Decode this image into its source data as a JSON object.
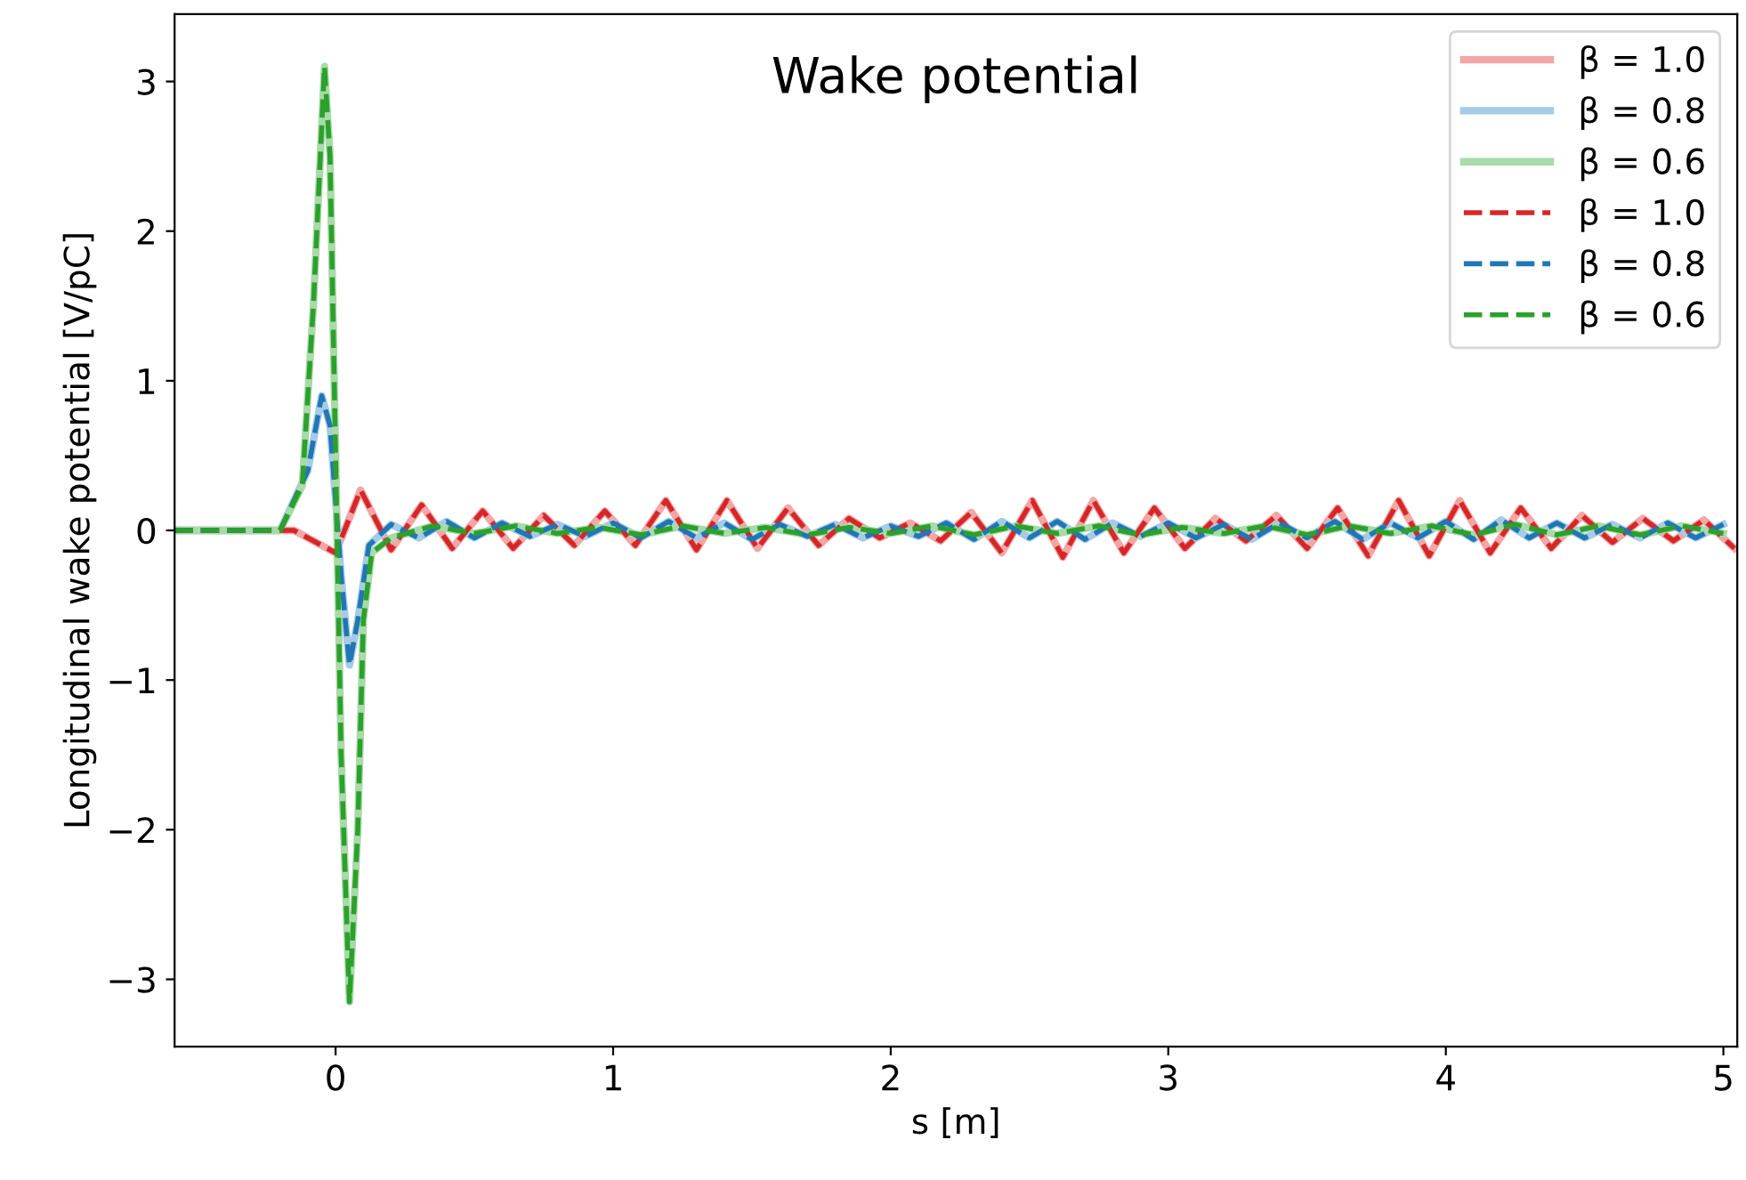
{
  "chart_data": {
    "type": "line",
    "title": "Wake potential",
    "xlabel": "s [m]",
    "ylabel": "Longitudinal wake potential [V/pC]",
    "xlim": [
      -0.58,
      5.05
    ],
    "ylim": [
      -3.45,
      3.45
    ],
    "xticks": [
      0,
      1,
      2,
      3,
      4,
      5
    ],
    "yticks": [
      -3,
      -2,
      -1,
      0,
      1,
      2,
      3
    ],
    "grid": false,
    "legend": "top right",
    "series": [
      {
        "name": "β = 1.0",
        "color": "#f4a6a6",
        "line_style": "solid",
        "x": [
          -0.58,
          -0.15,
          -0.05,
          0.0,
          0.09,
          0.2,
          0.31,
          0.42,
          0.53,
          0.64,
          0.75,
          0.86,
          0.97,
          1.08,
          1.19,
          1.3,
          1.41,
          1.52,
          1.63,
          1.74,
          1.85,
          1.96,
          2.07,
          2.18,
          2.29,
          2.4,
          2.51,
          2.62,
          2.73,
          2.84,
          2.95,
          3.06,
          3.17,
          3.28,
          3.39,
          3.5,
          3.61,
          3.72,
          3.83,
          3.94,
          4.05,
          4.16,
          4.27,
          4.38,
          4.49,
          4.6,
          4.71,
          4.82,
          4.93,
          5.04
        ],
        "values": [
          0,
          0,
          -0.1,
          -0.15,
          0.27,
          -0.13,
          0.17,
          -0.12,
          0.13,
          -0.12,
          0.1,
          -0.1,
          0.13,
          -0.1,
          0.2,
          -0.13,
          0.2,
          -0.12,
          0.15,
          -0.1,
          0.08,
          -0.05,
          0.05,
          -0.07,
          0.12,
          -0.15,
          0.2,
          -0.18,
          0.2,
          -0.15,
          0.15,
          -0.12,
          0.08,
          -0.07,
          0.1,
          -0.12,
          0.15,
          -0.17,
          0.2,
          -0.17,
          0.2,
          -0.15,
          0.15,
          -0.12,
          0.1,
          -0.08,
          0.08,
          -0.07,
          0.07,
          -0.12
        ]
      },
      {
        "name": "β = 0.8",
        "color": "#a6cbe8",
        "line_style": "solid",
        "x": [
          -0.58,
          -0.2,
          -0.1,
          -0.05,
          -0.02,
          0.02,
          0.05,
          0.08,
          0.12,
          0.2,
          0.3,
          0.4,
          0.5,
          0.6,
          0.7,
          0.8,
          0.9,
          1.0,
          1.1,
          1.2,
          1.3,
          1.4,
          1.5,
          1.6,
          1.7,
          1.8,
          1.9,
          2.0,
          2.1,
          2.2,
          2.3,
          2.4,
          2.5,
          2.6,
          2.7,
          2.8,
          2.9,
          3.0,
          3.1,
          3.2,
          3.3,
          3.4,
          3.5,
          3.6,
          3.7,
          3.8,
          3.9,
          4.0,
          4.1,
          4.2,
          4.3,
          4.4,
          4.5,
          4.6,
          4.7,
          4.8,
          4.9,
          5.0
        ],
        "values": [
          0,
          0,
          0.4,
          0.9,
          0.7,
          -0.3,
          -0.9,
          -0.6,
          -0.1,
          0.04,
          -0.05,
          0.06,
          -0.05,
          0.05,
          -0.04,
          0.04,
          -0.04,
          0.05,
          -0.05,
          0.06,
          -0.05,
          0.05,
          -0.06,
          0.04,
          -0.04,
          0.04,
          -0.05,
          0.03,
          -0.04,
          0.05,
          -0.06,
          0.06,
          -0.05,
          0.06,
          -0.06,
          0.05,
          -0.04,
          0.05,
          -0.05,
          0.04,
          -0.06,
          0.05,
          -0.05,
          0.06,
          -0.06,
          0.05,
          -0.05,
          0.06,
          -0.06,
          0.07,
          -0.05,
          0.05,
          -0.05,
          0.04,
          -0.05,
          0.05,
          -0.05,
          0.04
        ]
      },
      {
        "name": "β = 0.6",
        "color": "#a8dba8",
        "line_style": "solid",
        "x": [
          -0.58,
          -0.2,
          -0.12,
          -0.08,
          -0.04,
          -0.02,
          0.0,
          0.02,
          0.05,
          0.08,
          0.1,
          0.13,
          0.2,
          0.35,
          0.5,
          0.65,
          0.8,
          0.95,
          1.1,
          1.25,
          1.4,
          1.55,
          1.7,
          1.85,
          2.0,
          2.15,
          2.3,
          2.45,
          2.6,
          2.75,
          2.9,
          3.05,
          3.2,
          3.35,
          3.5,
          3.65,
          3.8,
          3.95,
          4.1,
          4.25,
          4.4,
          4.55,
          4.7,
          4.85,
          5.0
        ],
        "values": [
          0,
          0,
          0.3,
          1.5,
          3.1,
          2.5,
          0.5,
          -1.5,
          -3.15,
          -2.0,
          -0.6,
          -0.15,
          -0.05,
          0.03,
          -0.02,
          0.03,
          -0.02,
          0.02,
          -0.03,
          0.03,
          -0.02,
          0.02,
          -0.03,
          0.02,
          -0.02,
          0.03,
          -0.03,
          0.03,
          -0.02,
          0.03,
          -0.03,
          0.02,
          -0.02,
          0.03,
          -0.03,
          0.03,
          -0.02,
          0.03,
          -0.03,
          0.04,
          -0.03,
          0.03,
          -0.03,
          0.03,
          -0.02
        ]
      },
      {
        "name": "β = 1.0",
        "color": "#d62728",
        "line_style": "dashed",
        "x": [
          -0.58,
          -0.15,
          -0.05,
          0.0,
          0.09,
          0.2,
          0.31,
          0.42,
          0.53,
          0.64,
          0.75,
          0.86,
          0.97,
          1.08,
          1.19,
          1.3,
          1.41,
          1.52,
          1.63,
          1.74,
          1.85,
          1.96,
          2.07,
          2.18,
          2.29,
          2.4,
          2.51,
          2.62,
          2.73,
          2.84,
          2.95,
          3.06,
          3.17,
          3.28,
          3.39,
          3.5,
          3.61,
          3.72,
          3.83,
          3.94,
          4.05,
          4.16,
          4.27,
          4.38,
          4.49,
          4.6,
          4.71,
          4.82,
          4.93,
          5.04
        ],
        "values": [
          0,
          0,
          -0.1,
          -0.15,
          0.27,
          -0.13,
          0.17,
          -0.12,
          0.13,
          -0.12,
          0.1,
          -0.1,
          0.13,
          -0.1,
          0.2,
          -0.13,
          0.2,
          -0.12,
          0.15,
          -0.1,
          0.08,
          -0.05,
          0.05,
          -0.07,
          0.12,
          -0.15,
          0.2,
          -0.18,
          0.2,
          -0.15,
          0.15,
          -0.12,
          0.08,
          -0.07,
          0.1,
          -0.12,
          0.15,
          -0.17,
          0.2,
          -0.17,
          0.2,
          -0.15,
          0.15,
          -0.12,
          0.1,
          -0.08,
          0.08,
          -0.07,
          0.07,
          -0.12
        ]
      },
      {
        "name": "β = 0.8",
        "color": "#1f77b4",
        "line_style": "dashed",
        "x": [
          -0.58,
          -0.2,
          -0.1,
          -0.05,
          -0.02,
          0.02,
          0.05,
          0.08,
          0.12,
          0.2,
          0.3,
          0.4,
          0.5,
          0.6,
          0.7,
          0.8,
          0.9,
          1.0,
          1.1,
          1.2,
          1.3,
          1.4,
          1.5,
          1.6,
          1.7,
          1.8,
          1.9,
          2.0,
          2.1,
          2.2,
          2.3,
          2.4,
          2.5,
          2.6,
          2.7,
          2.8,
          2.9,
          3.0,
          3.1,
          3.2,
          3.3,
          3.4,
          3.5,
          3.6,
          3.7,
          3.8,
          3.9,
          4.0,
          4.1,
          4.2,
          4.3,
          4.4,
          4.5,
          4.6,
          4.7,
          4.8,
          4.9,
          5.0
        ],
        "values": [
          0,
          0,
          0.4,
          0.9,
          0.7,
          -0.3,
          -0.9,
          -0.6,
          -0.1,
          0.04,
          -0.05,
          0.06,
          -0.05,
          0.05,
          -0.04,
          0.04,
          -0.04,
          0.05,
          -0.05,
          0.06,
          -0.05,
          0.05,
          -0.06,
          0.04,
          -0.04,
          0.04,
          -0.05,
          0.03,
          -0.04,
          0.05,
          -0.06,
          0.06,
          -0.05,
          0.06,
          -0.06,
          0.05,
          -0.04,
          0.05,
          -0.05,
          0.04,
          -0.06,
          0.05,
          -0.05,
          0.06,
          -0.06,
          0.05,
          -0.05,
          0.06,
          -0.06,
          0.07,
          -0.05,
          0.05,
          -0.05,
          0.04,
          -0.05,
          0.05,
          -0.05,
          0.04
        ]
      },
      {
        "name": "β = 0.6",
        "color": "#2ca02c",
        "line_style": "dashed",
        "x": [
          -0.58,
          -0.2,
          -0.12,
          -0.08,
          -0.04,
          -0.02,
          0.0,
          0.02,
          0.05,
          0.08,
          0.1,
          0.13,
          0.2,
          0.35,
          0.5,
          0.65,
          0.8,
          0.95,
          1.1,
          1.25,
          1.4,
          1.55,
          1.7,
          1.85,
          2.0,
          2.15,
          2.3,
          2.45,
          2.6,
          2.75,
          2.9,
          3.05,
          3.2,
          3.35,
          3.5,
          3.65,
          3.8,
          3.95,
          4.1,
          4.25,
          4.4,
          4.55,
          4.7,
          4.85,
          5.0
        ],
        "values": [
          0,
          0,
          0.3,
          1.5,
          3.1,
          2.5,
          0.5,
          -1.5,
          -3.15,
          -2.0,
          -0.6,
          -0.15,
          -0.05,
          0.03,
          -0.02,
          0.03,
          -0.02,
          0.02,
          -0.03,
          0.03,
          -0.02,
          0.02,
          -0.03,
          0.02,
          -0.02,
          0.03,
          -0.03,
          0.03,
          -0.02,
          0.03,
          -0.03,
          0.02,
          -0.02,
          0.03,
          -0.03,
          0.03,
          -0.02,
          0.03,
          -0.03,
          0.04,
          -0.03,
          0.03,
          -0.03,
          0.03,
          -0.02
        ]
      }
    ]
  }
}
